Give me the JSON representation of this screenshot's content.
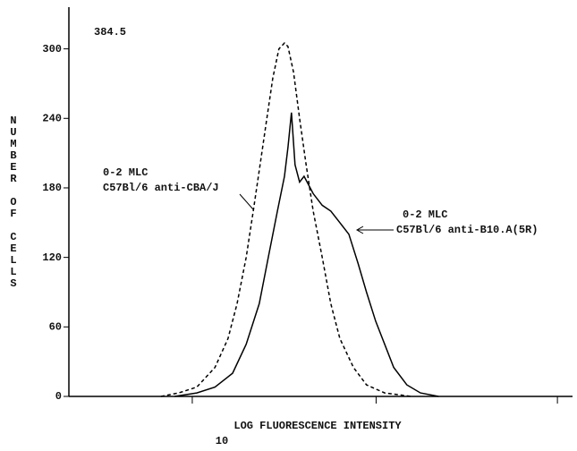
{
  "chart_data": {
    "type": "line",
    "xlabel": "LOG FLUORESCENCE INTENSITY",
    "xlabel_sub": "10",
    "ylabel": "NUMBER OF CELLS",
    "annotations": [
      "384.5",
      "0-2 MLC",
      "0-2 MLC"
    ],
    "xlim": [
      0,
      100
    ],
    "xticks": [
      24.5,
      61,
      97
    ],
    "ylim": [
      0,
      336
    ],
    "yticks": [
      0,
      60,
      120,
      180,
      240,
      300
    ],
    "series": [
      {
        "name": "C57Bl/6 anti-CBA/J",
        "color": "#000000",
        "dash": "4,3",
        "x": [
          18.3,
          21.8,
          25.4,
          29,
          31.6,
          33.4,
          35.2,
          36.6,
          37.8,
          39.3,
          40.5,
          41.7,
          42.8,
          43.5,
          44.6,
          45.8,
          47.1,
          48.5,
          50.3,
          52,
          53.8,
          56.5,
          59.1,
          62.7,
          68
        ],
        "values": [
          0,
          3,
          8,
          25,
          50,
          80,
          120,
          160,
          195,
          240,
          275,
          300,
          305,
          302,
          280,
          240,
          200,
          160,
          120,
          80,
          50,
          25,
          10,
          3,
          0
        ]
      },
      {
        "name": "C57Bl/6 anti-B10.A(5R)",
        "color": "#000000",
        "dash": "none",
        "x": [
          21,
          25.4,
          29,
          32.5,
          35.2,
          37.8,
          39.6,
          41.4,
          42.8,
          43.5,
          44.2,
          44.9,
          45.8,
          46.7,
          48.5,
          50.3,
          52,
          53.8,
          55.6,
          57.4,
          59.1,
          60.9,
          62.7,
          64.5,
          67.1,
          69.8,
          73.4
        ],
        "values": [
          0,
          3,
          8,
          20,
          45,
          80,
          120,
          160,
          190,
          215,
          245,
          200,
          185,
          190,
          175,
          165,
          160,
          150,
          140,
          115,
          90,
          65,
          45,
          25,
          10,
          3,
          0
        ]
      }
    ]
  }
}
